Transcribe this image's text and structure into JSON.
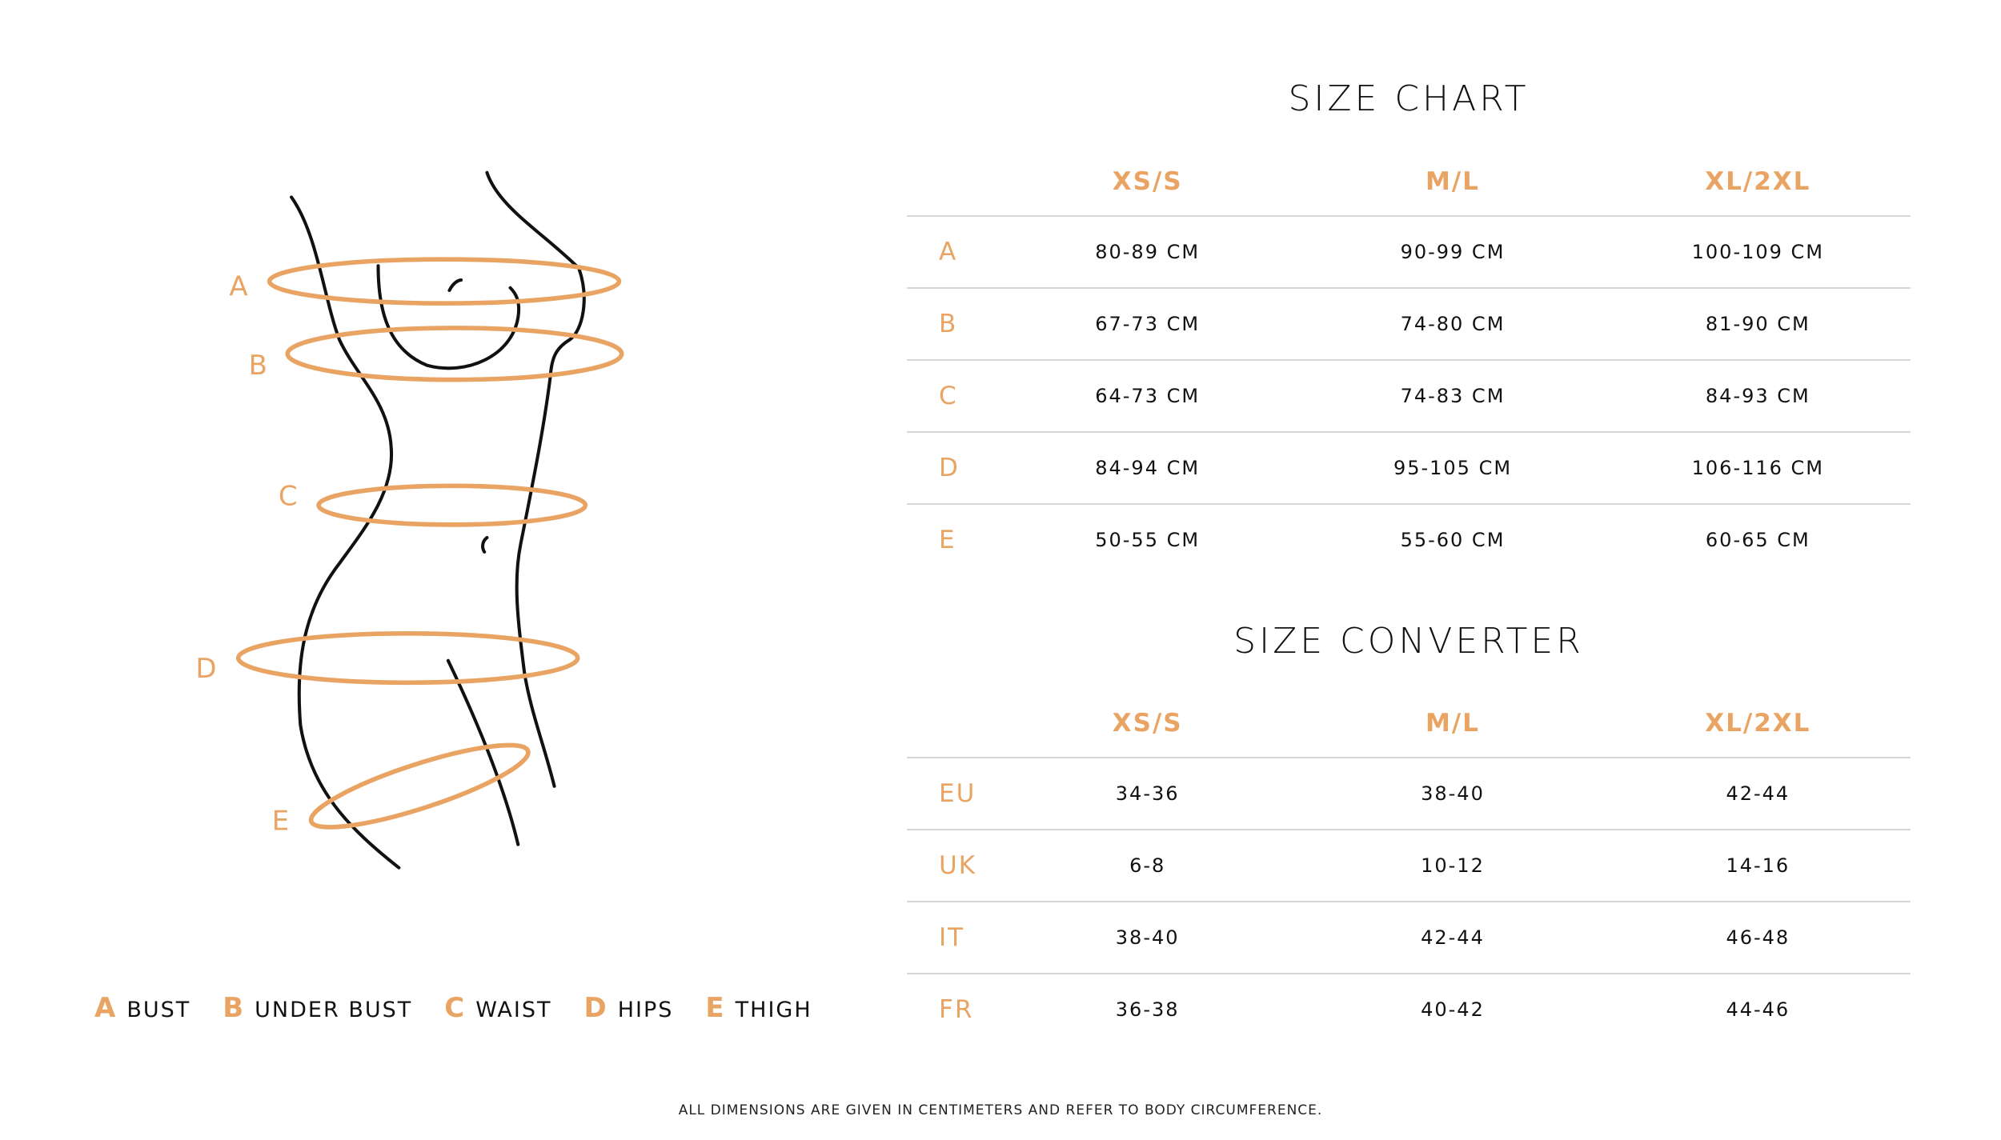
{
  "colors": {
    "accent": "#E9A463",
    "text": "#111111",
    "divider": "#d6d6d6"
  },
  "figure": {
    "labels": [
      "A",
      "B",
      "C",
      "D",
      "E"
    ]
  },
  "size_chart": {
    "title": "SIZE CHART",
    "columns": [
      "XS/S",
      "M/L",
      "XL/2XL"
    ],
    "rows": [
      {
        "label": "A",
        "values": [
          "80-89 CM",
          "90-99 CM",
          "100-109 CM"
        ]
      },
      {
        "label": "B",
        "values": [
          "67-73 CM",
          "74-80 CM",
          "81-90 CM"
        ]
      },
      {
        "label": "C",
        "values": [
          "64-73 CM",
          "74-83 CM",
          "84-93 CM"
        ]
      },
      {
        "label": "D",
        "values": [
          "84-94 CM",
          "95-105 CM",
          "106-116 CM"
        ]
      },
      {
        "label": "E",
        "values": [
          "50-55 CM",
          "55-60 CM",
          "60-65 CM"
        ]
      }
    ]
  },
  "size_converter": {
    "title": "SIZE CONVERTER",
    "columns": [
      "XS/S",
      "M/L",
      "XL/2XL"
    ],
    "rows": [
      {
        "label": "EU",
        "values": [
          "34-36",
          "38-40",
          "42-44"
        ]
      },
      {
        "label": "UK",
        "values": [
          "6-8",
          "10-12",
          "14-16"
        ]
      },
      {
        "label": "IT",
        "values": [
          "38-40",
          "42-44",
          "46-48"
        ]
      },
      {
        "label": "FR",
        "values": [
          "36-38",
          "40-42",
          "44-46"
        ]
      }
    ]
  },
  "legend": [
    {
      "key": "A",
      "label": "BUST"
    },
    {
      "key": "B",
      "label": "UNDER BUST"
    },
    {
      "key": "C",
      "label": "WAIST"
    },
    {
      "key": "D",
      "label": "HIPS"
    },
    {
      "key": "E",
      "label": "THIGH"
    }
  ],
  "footer": "ALL DIMENSIONS ARE GIVEN IN CENTIMETERS AND REFER TO BODY CIRCUMFERENCE."
}
